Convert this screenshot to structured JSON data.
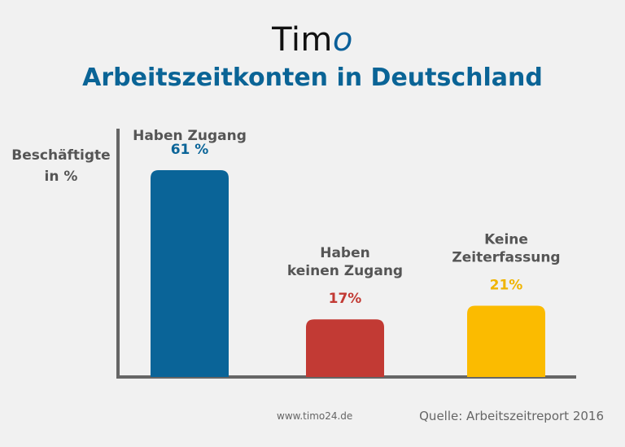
{
  "header": {
    "logo_text": "Tim",
    "logo_accent": "o",
    "title": "Arbeitszeitkonten in Deutschland"
  },
  "footer": {
    "website": "www.timo24.de",
    "source": "Quelle: Arbeitszeitreport 2016"
  },
  "colors": {
    "background": "#f1f1f1",
    "title": "#0a6496",
    "axis": "#666666"
  },
  "chart_data": {
    "type": "bar",
    "title": "Arbeitszeitkonten in Deutschland",
    "ylabel_lines": [
      "Beschäftigte",
      "in %"
    ],
    "xlabel": "",
    "ylim": [
      0,
      75
    ],
    "grid": false,
    "categories": [
      [
        "Haben Zugang"
      ],
      [
        "Haben",
        "keinen Zugang"
      ],
      [
        "Keine",
        "Zeiterfassung"
      ]
    ],
    "values": [
      61,
      17,
      21
    ],
    "value_labels": [
      "61 %",
      "17%",
      "21%"
    ],
    "bar_colors": [
      "#0a6498",
      "#c23a34",
      "#fbbb00"
    ],
    "value_label_colors": [
      "#0a6498",
      "#c23a34",
      "#f0b400"
    ]
  }
}
